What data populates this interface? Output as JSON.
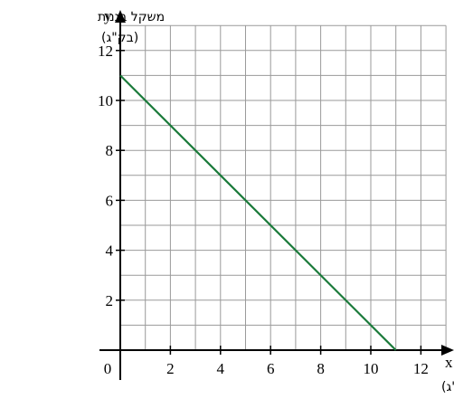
{
  "chart_data": {
    "type": "line",
    "x_axis_letter": "x",
    "y_axis_letter": "y",
    "xlabel": "משקל תפוחים (בק\"ג)",
    "ylabel_line1": "משקל בננות",
    "ylabel_line2": "(בק\"ג)",
    "origin_label": "0",
    "xlim": [
      0,
      13
    ],
    "ylim": [
      0,
      13
    ],
    "x_ticks": [
      {
        "value": 2,
        "label": "2"
      },
      {
        "value": 4,
        "label": "4"
      },
      {
        "value": 6,
        "label": "6"
      },
      {
        "value": 8,
        "label": "8"
      },
      {
        "value": 10,
        "label": "10"
      },
      {
        "value": 12,
        "label": "12"
      }
    ],
    "y_ticks": [
      {
        "value": 2,
        "label": "2"
      },
      {
        "value": 4,
        "label": "4"
      },
      {
        "value": 6,
        "label": "6"
      },
      {
        "value": 8,
        "label": "8"
      },
      {
        "value": 10,
        "label": "10"
      },
      {
        "value": 12,
        "label": "12"
      }
    ],
    "grid_step": 1,
    "grid": true,
    "series": [
      {
        "points": [
          {
            "x": 0,
            "y": 11
          },
          {
            "x": 11,
            "y": 0
          }
        ],
        "color": "#1a7a3a"
      }
    ],
    "grid_color": "#9a9a9a",
    "axis_color": "#000000"
  }
}
